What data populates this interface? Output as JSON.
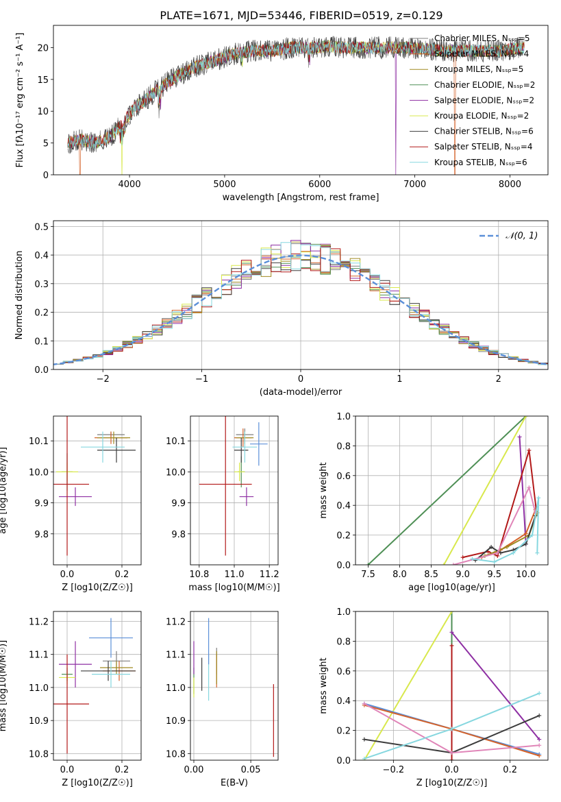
{
  "figure": {
    "title": "PLATE=1671, MJD=53446, FIBERID=0519, z=0.129"
  },
  "chart_data": [
    {
      "id": "spectrum",
      "type": "line",
      "xlabel": "wavelength [Angstrom, rest frame]",
      "ylabel": "Flux [f_λ10^-17 erg cm^-2 s^-1 A^-1]",
      "xlim": [
        3200,
        8400
      ],
      "ylim": [
        0,
        23.5
      ],
      "xticks": [
        4000,
        5000,
        6000,
        7000,
        8000
      ],
      "yticks": [
        0,
        5,
        10,
        15,
        20
      ],
      "x_range_data": [
        3350,
        8150
      ],
      "continuum": {
        "x": [
          3350,
          3500,
          3650,
          3800,
          3950,
          4050,
          4150,
          4300,
          4500,
          4700,
          4900,
          5100,
          5300,
          5500,
          5700,
          5900,
          6100,
          6300,
          6500,
          6700,
          6900,
          7100,
          7300,
          7500,
          7700,
          7900,
          8150
        ],
        "y": [
          5.0,
          5.5,
          5.0,
          6.0,
          8.5,
          10.5,
          11.5,
          13.5,
          15.5,
          17.0,
          18.0,
          19.0,
          19.5,
          19.5,
          20.0,
          20.0,
          20.2,
          20.0,
          20.0,
          20.0,
          20.0,
          19.8,
          19.5,
          19.5,
          19.5,
          19.5,
          20.0
        ]
      },
      "series": [
        {
          "name": "Chabrier MILES, N_SSP=5",
          "color": "#7f7f7f"
        },
        {
          "name": "Salpeter MILES, N_SSP=4",
          "color": "#d4622a"
        },
        {
          "name": "Kroupa MILES, N_SSP=5",
          "color": "#a08a22"
        },
        {
          "name": "Chabrier ELODIE, N_SSP=2",
          "color": "#4e8f55"
        },
        {
          "name": "Salpeter ELODIE, N_SSP=2",
          "color": "#8e2fa3"
        },
        {
          "name": "Kroupa ELODIE, N_SSP=2",
          "color": "#d8e84c"
        },
        {
          "name": "Chabrier STELIB, N_SSP=6",
          "color": "#3c3c3c"
        },
        {
          "name": "Salpeter STELIB, N_SSP=4",
          "color": "#b21818"
        },
        {
          "name": "Kroupa STELIB, N_SSP=6",
          "color": "#86d7df"
        }
      ],
      "legend_placement": "right",
      "grid": false
    },
    {
      "id": "residuals",
      "type": "line",
      "xlabel": "(data-model)/error",
      "ylabel": "Normed distribution",
      "xlim": [
        -2.5,
        2.5
      ],
      "ylim": [
        0,
        0.52
      ],
      "xticks": [
        -2,
        -1,
        0,
        1,
        2
      ],
      "yticks": [
        0.0,
        0.1,
        0.2,
        0.3,
        0.4,
        0.5
      ],
      "grid": true,
      "legend": "𝒩(0, 1)",
      "legend_placement": "top-right",
      "hist_bins": {
        "start": -2.5,
        "width": 0.1,
        "count": 50
      },
      "gaussian": {
        "mu": 0,
        "sigma": 1,
        "color": "#5b8fd8"
      }
    },
    {
      "id": "age-vs-z",
      "type": "scatter",
      "xlabel": "Z [log10(Z/Z☉)]",
      "ylabel": "age  [log10(age/yr)]",
      "xlim": [
        -0.05,
        0.27
      ],
      "ylim": [
        9.7,
        10.18
      ],
      "xticks": [
        0.0,
        0.2
      ],
      "yticks": [
        9.8,
        9.9,
        10.0,
        10.1
      ],
      "grid": true,
      "points": [
        {
          "series": 0,
          "x": 0.16,
          "xerr": 0.05,
          "y": 10.12,
          "yerr": 0.01
        },
        {
          "series": 1,
          "x": 0.16,
          "xerr": 0.06,
          "y": 10.11,
          "yerr": 0.02
        },
        {
          "series": 2,
          "x": 0.17,
          "xerr": 0.06,
          "y": 10.11,
          "yerr": 0.02
        },
        {
          "series": 3,
          "x": 0.0,
          "xerr": 0.02,
          "y": 10.0,
          "yerr": 0.06
        },
        {
          "series": 4,
          "x": 0.03,
          "xerr": 0.06,
          "y": 9.92,
          "yerr": 0.03
        },
        {
          "series": 5,
          "x": 0.0,
          "xerr": 0.04,
          "y": 10.0,
          "yerr": 0.03
        },
        {
          "series": 6,
          "x": 0.18,
          "xerr": 0.07,
          "y": 10.07,
          "yerr": 0.04
        },
        {
          "series": 7,
          "x": 0.0,
          "xerr": 0.08,
          "y": 9.96,
          "yerr": 0.23
        },
        {
          "series": 8,
          "x": 0.13,
          "xerr": 0.08,
          "y": 10.08,
          "yerr": 0.05
        }
      ]
    },
    {
      "id": "age-vs-mass",
      "type": "scatter",
      "xlabel": "mass [log10(M/M☉)]",
      "ylabel": "",
      "xlim": [
        10.75,
        11.25
      ],
      "ylim": [
        9.7,
        10.18
      ],
      "xticks": [
        10.8,
        11.0,
        11.2
      ],
      "yticks": [
        9.8,
        9.9,
        10.0,
        10.1
      ],
      "grid": true,
      "points": [
        {
          "series": 0,
          "x": 11.06,
          "xerr": 0.05,
          "y": 10.12,
          "yerr": 0.02
        },
        {
          "series": 1,
          "x": 11.05,
          "xerr": 0.05,
          "y": 10.11,
          "yerr": 0.03
        },
        {
          "series": 2,
          "x": 11.06,
          "xerr": 0.05,
          "y": 10.11,
          "yerr": 0.02
        },
        {
          "series": 3,
          "x": 11.04,
          "xerr": 0.02,
          "y": 10.0,
          "yerr": 0.05
        },
        {
          "series": 4,
          "x": 11.07,
          "xerr": 0.04,
          "y": 9.92,
          "yerr": 0.03
        },
        {
          "series": 5,
          "x": 11.03,
          "xerr": 0.03,
          "y": 10.0,
          "yerr": 0.03
        },
        {
          "series": 6,
          "x": 11.04,
          "xerr": 0.04,
          "y": 10.07,
          "yerr": 0.04
        },
        {
          "series": 7,
          "x": 10.95,
          "xerr": 0.15,
          "y": 9.96,
          "yerr": 0.23
        },
        {
          "series": 8,
          "x": 11.06,
          "xerr": 0.07,
          "y": 10.08,
          "yerr": 0.05
        },
        {
          "series": 9,
          "x": 11.14,
          "xerr": 0.05,
          "y": 10.09,
          "yerr": 0.07
        }
      ]
    },
    {
      "id": "mass-weight-vs-age",
      "type": "line",
      "xlabel": "age  [log10(age/yr)]",
      "ylabel": "mass weight",
      "xlim": [
        7.3,
        10.35
      ],
      "ylim": [
        0,
        1.0
      ],
      "xticks": [
        7.5,
        8.0,
        8.5,
        9.0,
        9.5,
        10.0
      ],
      "yticks": [
        0.0,
        0.2,
        0.4,
        0.6,
        0.8,
        1.0
      ],
      "grid": true,
      "series": [
        {
          "color": "#4e8f55",
          "x": [
            7.5,
            10.0
          ],
          "y": [
            0.0,
            1.0
          ]
        },
        {
          "color": "#d8e84c",
          "x": [
            8.7,
            10.0
          ],
          "y": [
            0.0,
            1.0
          ]
        },
        {
          "color": "#8e2fa3",
          "x": [
            9.9,
            10.0
          ],
          "y": [
            0.86,
            0.14
          ]
        },
        {
          "color": "#b21818",
          "x": [
            9.0,
            9.4,
            9.55,
            10.05,
            10.17
          ],
          "y": [
            0.05,
            0.09,
            0.06,
            0.77,
            0.35
          ]
        },
        {
          "color": "#d4622a",
          "x": [
            9.3,
            9.6,
            10.0,
            10.15
          ],
          "y": [
            0.05,
            0.1,
            0.21,
            0.37
          ]
        },
        {
          "color": "#a08a22",
          "x": [
            9.35,
            9.7,
            10.05,
            10.18
          ],
          "y": [
            0.06,
            0.12,
            0.2,
            0.35
          ]
        },
        {
          "color": "#3c3c3c",
          "x": [
            9.2,
            9.45,
            9.6,
            9.8,
            10.0,
            10.15
          ],
          "y": [
            0.03,
            0.12,
            0.08,
            0.1,
            0.14,
            0.33
          ]
        },
        {
          "color": "#e085b8",
          "x": [
            8.85,
            9.55,
            10.05,
            10.15
          ],
          "y": [
            0.0,
            0.08,
            0.52,
            0.35
          ]
        },
        {
          "color": "#86d7df",
          "x": [
            9.15,
            9.5,
            9.8,
            10.1,
            10.2,
            10.18
          ],
          "y": [
            0.04,
            0.02,
            0.08,
            0.2,
            0.45,
            0.08
          ]
        }
      ]
    },
    {
      "id": "mass-vs-z",
      "type": "scatter",
      "xlabel": "Z [log10(Z/Z☉)]",
      "ylabel": "mass [log10(M/M☉)]",
      "xlim": [
        -0.05,
        0.27
      ],
      "ylim": [
        10.78,
        11.23
      ],
      "xticks": [
        0.0,
        0.2
      ],
      "yticks": [
        10.8,
        10.9,
        11.0,
        11.1,
        11.2
      ],
      "grid": true,
      "points": [
        {
          "series": 0,
          "x": 0.18,
          "xerr": 0.05,
          "y": 11.08,
          "yerr": 0.03
        },
        {
          "series": 1,
          "x": 0.19,
          "xerr": 0.06,
          "y": 11.05,
          "yerr": 0.03
        },
        {
          "series": 2,
          "x": 0.18,
          "xerr": 0.06,
          "y": 11.06,
          "yerr": 0.02
        },
        {
          "series": 3,
          "x": 0.0,
          "xerr": 0.02,
          "y": 11.04,
          "yerr": 0.02
        },
        {
          "series": 4,
          "x": 0.03,
          "xerr": 0.06,
          "y": 11.07,
          "yerr": 0.07
        },
        {
          "series": 5,
          "x": 0.0,
          "xerr": 0.03,
          "y": 11.03,
          "yerr": 0.02
        },
        {
          "series": 6,
          "x": 0.15,
          "xerr": 0.1,
          "y": 11.05,
          "yerr": 0.03
        },
        {
          "series": 7,
          "x": 0.0,
          "xerr": 0.08,
          "y": 10.95,
          "yerr": 0.15
        },
        {
          "series": 8,
          "x": 0.16,
          "xerr": 0.07,
          "y": 11.04,
          "yerr": 0.04
        },
        {
          "series": 9,
          "x": 0.16,
          "xerr": 0.08,
          "y": 11.15,
          "yerr": 0.06
        }
      ]
    },
    {
      "id": "mass-vs-ebv",
      "type": "scatter",
      "xlabel": "E(B-V)",
      "ylabel": "",
      "xlim": [
        -0.003,
        0.074
      ],
      "ylim": [
        10.78,
        11.23
      ],
      "xticks": [
        0.0,
        0.05
      ],
      "yticks": [
        10.8,
        10.9,
        11.0,
        11.1,
        11.2
      ],
      "grid": true,
      "points": [
        {
          "series": 0,
          "x": 0.02,
          "y": 11.08,
          "yerr": 0.04
        },
        {
          "series": 1,
          "x": 0.02,
          "y": 11.05,
          "yerr": 0.05
        },
        {
          "series": 2,
          "x": 0.02,
          "y": 11.06,
          "yerr": 0.05
        },
        {
          "series": 3,
          "x": 0.0,
          "y": 11.02,
          "yerr": 0.04
        },
        {
          "series": 4,
          "x": 0.0,
          "y": 11.09,
          "yerr": 0.05
        },
        {
          "series": 5,
          "x": 0.0,
          "y": 11.0,
          "yerr": 0.03
        },
        {
          "series": 6,
          "x": 0.007,
          "y": 11.04,
          "yerr": 0.05
        },
        {
          "series": 7,
          "x": 0.07,
          "y": 10.9,
          "yerr": 0.11
        },
        {
          "series": 8,
          "x": 0.013,
          "y": 11.03,
          "yerr": 0.07
        },
        {
          "series": 9,
          "x": 0.013,
          "y": 11.14,
          "yerr": 0.07
        }
      ]
    },
    {
      "id": "mass-weight-vs-z",
      "type": "line",
      "xlabel": "Z [log10(Z/Z☉)]",
      "ylabel": "mass weight",
      "xlim": [
        -0.33,
        0.33
      ],
      "ylim": [
        0,
        1.0
      ],
      "xticks": [
        -0.2,
        0.0,
        0.2
      ],
      "yticks": [
        0.0,
        0.2,
        0.4,
        0.6,
        0.8,
        1.0
      ],
      "grid": true,
      "series": [
        {
          "color": "#4e8f55",
          "x": [
            0.0,
            0.0
          ],
          "y": [
            1.0,
            0.0
          ]
        },
        {
          "color": "#d8e84c",
          "x": [
            -0.3,
            0.0
          ],
          "y": [
            0.0,
            1.0
          ]
        },
        {
          "color": "#8e2fa3",
          "x": [
            0.0,
            0.3
          ],
          "y": [
            0.86,
            0.14
          ]
        },
        {
          "color": "#b21818",
          "x": [
            0.0,
            0.0
          ],
          "y": [
            0.77,
            0.0
          ]
        },
        {
          "color": "#5b8fd8",
          "x": [
            -0.3,
            0.0,
            0.3
          ],
          "y": [
            0.38,
            0.21,
            0.04
          ]
        },
        {
          "color": "#d4622a",
          "x": [
            -0.3,
            0.0,
            0.3
          ],
          "y": [
            0.37,
            0.21,
            0.03
          ]
        },
        {
          "color": "#3c3c3c",
          "x": [
            -0.3,
            0.0,
            0.3
          ],
          "y": [
            0.14,
            0.05,
            0.3
          ]
        },
        {
          "color": "#e085b8",
          "x": [
            -0.3,
            0.0,
            0.3
          ],
          "y": [
            0.38,
            0.05,
            0.1
          ]
        },
        {
          "color": "#86d7df",
          "x": [
            -0.3,
            0.0,
            0.3
          ],
          "y": [
            0.01,
            0.21,
            0.45
          ]
        }
      ]
    }
  ],
  "extra_colors": [
    "#5b8fd8",
    "#e085b8"
  ]
}
